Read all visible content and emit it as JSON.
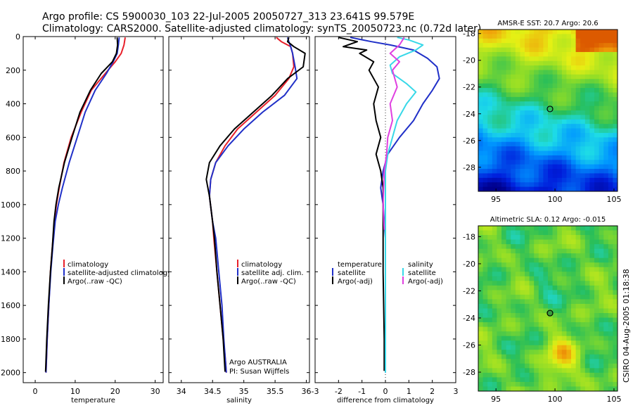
{
  "title": {
    "line1": "Argo profile: CS 5900030_103 22-Jul-2005 20050727_313 23.641S 99.579E",
    "line2": "Climatology: CARS2000. Satellite-adjusted climatology: synTS_20050723.nc (0.72d later)"
  },
  "side_label": "CSIRO 04-Aug-2005 01:18:38",
  "chart_data": [
    {
      "type": "line",
      "xlabel": "temperature",
      "ylabel": "",
      "xlim": [
        -3,
        32
      ],
      "ylim": [
        2060,
        0
      ],
      "xticks": [
        0,
        10,
        20,
        30
      ],
      "yticks": [
        0,
        200,
        400,
        600,
        800,
        1000,
        1200,
        1400,
        1600,
        1800,
        2000
      ],
      "legend": [
        "climatology",
        "satellite-adjusted climatology",
        "Argo(..raw -QC)"
      ],
      "series": [
        {
          "name": "climatology",
          "color": "#e8202a",
          "x": [
            22.5,
            22.2,
            21.5,
            20.0,
            17.5,
            14.0,
            11.5,
            9.0,
            7.2,
            6.0,
            5.3,
            4.8,
            4.3,
            3.8,
            3.4,
            3.0,
            2.7
          ],
          "y": [
            5,
            50,
            100,
            150,
            220,
            320,
            450,
            600,
            750,
            900,
            1000,
            1100,
            1250,
            1400,
            1600,
            1800,
            2000
          ]
        },
        {
          "name": "satellite-adjusted climatology",
          "color": "#2030c8",
          "x": [
            21.0,
            20.8,
            20.5,
            19.5,
            17.8,
            15.0,
            12.5,
            10.5,
            8.5,
            6.8,
            5.8,
            5.0,
            4.4,
            3.9,
            3.4,
            3.0,
            2.7
          ],
          "y": [
            5,
            50,
            100,
            150,
            220,
            320,
            450,
            600,
            750,
            900,
            1000,
            1100,
            1250,
            1400,
            1600,
            1800,
            2000
          ]
        },
        {
          "name": "Argo(..raw -QC)",
          "color": "#000000",
          "x": [
            20.5,
            20.6,
            20.3,
            19.3,
            16.5,
            13.8,
            11.2,
            9.2,
            7.3,
            5.9,
            5.2,
            4.7,
            4.3,
            3.8,
            3.3,
            2.9,
            2.6
          ],
          "y": [
            5,
            50,
            100,
            150,
            220,
            320,
            450,
            600,
            750,
            900,
            1000,
            1100,
            1250,
            1400,
            1600,
            1800,
            1995
          ]
        }
      ]
    },
    {
      "type": "line",
      "xlabel": "salinity",
      "ylabel": "",
      "xlim": [
        33.8,
        36.05
      ],
      "ylim": [
        2060,
        0
      ],
      "xticks": [
        34,
        34.5,
        35,
        35.5,
        36
      ],
      "yticks": [
        0,
        200,
        400,
        600,
        800,
        1000,
        1200,
        1400,
        1600,
        1800,
        2000
      ],
      "legend": [
        "climatology",
        "satellite adj. clim.",
        "Argo(..raw -QC)"
      ],
      "annotations": [
        "Argo AUSTRALIA",
        "PI: Susan Wijffels"
      ],
      "series": [
        {
          "name": "climatology",
          "color": "#e8202a",
          "x": [
            35.52,
            35.6,
            35.75,
            35.78,
            35.8,
            35.72,
            35.5,
            35.2,
            34.9,
            34.7,
            34.55,
            34.47,
            34.45,
            34.5,
            34.52,
            34.57,
            34.62,
            34.67,
            34.7,
            34.72
          ],
          "y": [
            5,
            30,
            60,
            100,
            180,
            250,
            350,
            450,
            550,
            650,
            750,
            850,
            950,
            1100,
            1200,
            1400,
            1600,
            1800,
            1900,
            2000
          ]
        },
        {
          "name": "satellite adj. clim.",
          "color": "#2030c8",
          "x": [
            35.7,
            35.72,
            35.75,
            35.78,
            35.82,
            35.85,
            35.65,
            35.3,
            35.0,
            34.75,
            34.55,
            34.47,
            34.45,
            34.5,
            34.55,
            34.6,
            34.65,
            34.68,
            34.7,
            34.72
          ],
          "y": [
            5,
            30,
            60,
            100,
            180,
            250,
            350,
            450,
            550,
            650,
            750,
            850,
            950,
            1100,
            1200,
            1400,
            1600,
            1800,
            1900,
            2000
          ]
        },
        {
          "name": "Argo(..raw -QC)",
          "color": "#000000",
          "x": [
            35.72,
            35.7,
            35.8,
            35.98,
            35.95,
            35.7,
            35.45,
            35.15,
            34.85,
            34.62,
            34.45,
            34.4,
            34.45,
            34.5,
            34.53,
            34.57,
            34.62,
            34.67,
            34.7
          ],
          "y": [
            5,
            30,
            60,
            100,
            180,
            250,
            350,
            450,
            550,
            650,
            750,
            850,
            950,
            1100,
            1200,
            1400,
            1600,
            1800,
            1995
          ]
        }
      ]
    },
    {
      "type": "line",
      "xlabel": "difference from climatology",
      "ylabel": "",
      "xlim": [
        -3,
        3
      ],
      "ylim": [
        2060,
        0
      ],
      "xticks": [
        -3,
        -2,
        -1,
        0,
        1,
        2,
        3
      ],
      "yticks": [
        0,
        200,
        400,
        600,
        800,
        1000,
        1200,
        1400,
        1600,
        1800,
        2000
      ],
      "legend_left": [
        "temperature",
        "satellite",
        "Argo(-adj)"
      ],
      "legend_right": [
        "salinity",
        "satellite",
        "Argo(-adj)"
      ],
      "series": [
        {
          "name": "satellite",
          "color": "#2030c8",
          "x": [
            -1.5,
            -0.6,
            0.2,
            1.2,
            1.8,
            2.2,
            2.3,
            2.0,
            1.6,
            1.2,
            0.6,
            0.1,
            -0.1,
            -0.2,
            -0.1,
            0.0,
            0.0,
            0.0,
            0.0,
            0.0,
            0.0
          ],
          "y": [
            5,
            30,
            50,
            80,
            130,
            180,
            250,
            320,
            400,
            500,
            600,
            700,
            800,
            900,
            1000,
            1200,
            1400,
            1600,
            1800,
            1900,
            2000
          ]
        },
        {
          "name": "Argo(-adj)",
          "color": "#000000",
          "x": [
            -2.0,
            -1.2,
            -1.8,
            -0.8,
            -1.1,
            -0.5,
            -0.7,
            -0.3,
            -0.5,
            -0.4,
            -0.2,
            -0.4,
            -0.2,
            -0.1,
            -0.1,
            -0.1,
            -0.05,
            -0.05
          ],
          "y": [
            5,
            30,
            60,
            80,
            100,
            150,
            200,
            300,
            400,
            500,
            600,
            700,
            800,
            900,
            1000,
            1400,
            1800,
            1990
          ]
        },
        {
          "name": "salinity satellite",
          "color": "#38d8e8",
          "x": [
            0.5,
            1.0,
            1.6,
            1.3,
            0.6,
            0.2,
            0.3,
            0.9,
            1.3,
            0.9,
            0.5,
            0.3,
            0.1,
            0.0,
            0.0,
            0.0,
            0.0
          ],
          "y": [
            5,
            20,
            50,
            80,
            120,
            170,
            220,
            280,
            330,
            400,
            500,
            600,
            700,
            800,
            1000,
            1500,
            2000
          ]
        },
        {
          "name": "salinity Argo(-adj)",
          "color": "#e040e0",
          "x": [
            0.8,
            0.6,
            0.2,
            0.6,
            0.3,
            0.5,
            0.2,
            0.3,
            0.1,
            0.05,
            -0.05,
            -0.1,
            -0.05
          ],
          "y": [
            5,
            50,
            100,
            150,
            200,
            300,
            400,
            500,
            600,
            700,
            800,
            1000,
            1150
          ]
        }
      ]
    },
    {
      "type": "heatmap",
      "title": "AMSR-E SST: 20.7 Argo: 20.6",
      "xlim": [
        93.5,
        105.3
      ],
      "ylim": [
        -29.8,
        -17.7
      ],
      "xticks": [
        95,
        100,
        105
      ],
      "yticks": [
        -18,
        -20,
        -22,
        -24,
        -26,
        -28
      ],
      "marker": {
        "x": 99.579,
        "y": -23.641
      }
    },
    {
      "type": "heatmap",
      "title": "Altimetric SLA: 0.12 Argo: -0.015",
      "xlim": [
        93.5,
        105.3
      ],
      "ylim": [
        -29.4,
        -17.2
      ],
      "xticks": [
        95,
        100,
        105
      ],
      "yticks": [
        -18,
        -20,
        -22,
        -24,
        -26,
        -28
      ],
      "marker": {
        "x": 99.579,
        "y": -23.641
      }
    }
  ]
}
